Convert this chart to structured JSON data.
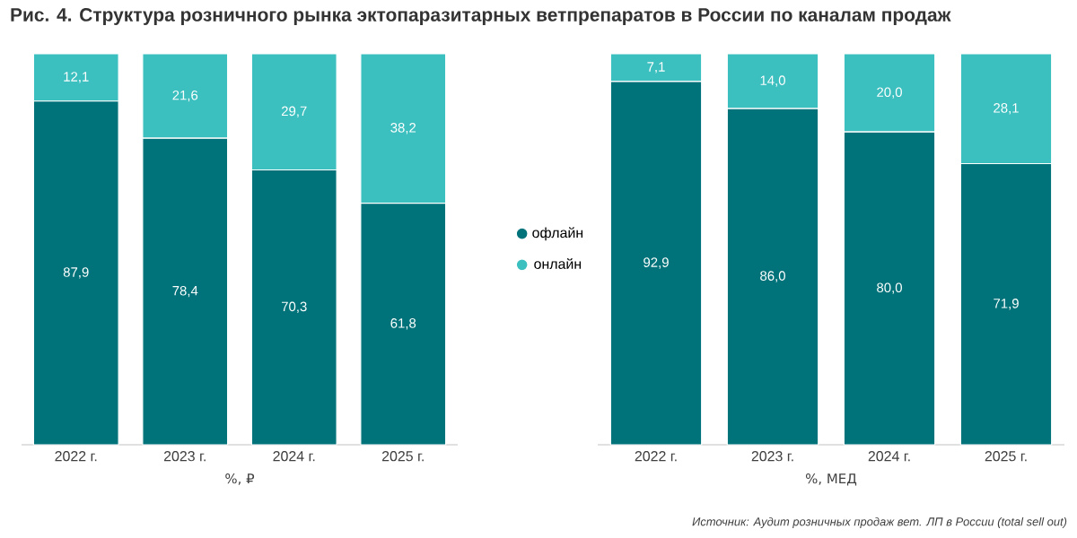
{
  "chart_data": [
    {
      "type": "bar",
      "stacked": true,
      "title": "Рис. 4. Структура розничного рынка эктопаразитарных ветпрепаратов в России по каналам продаж",
      "xlabel": "%, ₽",
      "categories": [
        "2022 г.",
        "2023 г.",
        "2024 г.",
        "2025 г."
      ],
      "legend": "right",
      "series": [
        {
          "name": "офлайн",
          "color": "#00737a",
          "values": [
            87.9,
            78.4,
            70.3,
            61.8
          ],
          "value_labels": [
            "87,9",
            "78,4",
            "70,3",
            "61,8"
          ]
        },
        {
          "name": "онлайн",
          "color": "#3cbfbf",
          "values": [
            12.1,
            21.6,
            29.7,
            38.2
          ],
          "value_labels": [
            "12,1",
            "21,6",
            "29,7",
            "38,2"
          ]
        }
      ]
    },
    {
      "type": "bar",
      "stacked": true,
      "xlabel": "%, МЕД",
      "categories": [
        "2022 г.",
        "2023 г.",
        "2024 г.",
        "2025 г."
      ],
      "annotations": [
        "Источник: Аудит розничных продаж вет. ЛП в России (total sell out)"
      ],
      "series": [
        {
          "color": "#00737a",
          "values": [
            92.9,
            86.0,
            80.0,
            71.9
          ],
          "value_labels": [
            "92,9",
            "86,0",
            "80,0",
            "71,9"
          ]
        },
        {
          "color": "#3cbfbf",
          "values": [
            7.1,
            14.0,
            20.0,
            28.1
          ],
          "value_labels": [
            "7,1",
            "14,0",
            "20,0",
            "28,1"
          ]
        }
      ]
    }
  ]
}
